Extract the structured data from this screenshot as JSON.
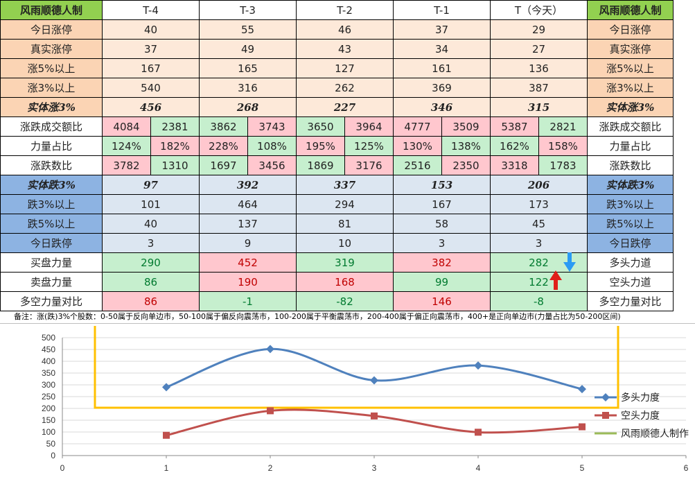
{
  "table": {
    "corner_label": "风雨顺德人制",
    "columns": [
      "T-4",
      "T-3",
      "T-2",
      "T-1",
      "T（今天）"
    ],
    "rows_upper": [
      {
        "label": "今日涨停",
        "values": [
          "40",
          "55",
          "46",
          "37",
          "29"
        ]
      },
      {
        "label": "真实涨停",
        "values": [
          "37",
          "49",
          "43",
          "34",
          "27"
        ]
      },
      {
        "label": "涨5%以上",
        "values": [
          "167",
          "165",
          "127",
          "161",
          "136"
        ]
      },
      {
        "label": "涨3%以上",
        "values": [
          "540",
          "316",
          "262",
          "369",
          "387"
        ]
      }
    ],
    "row_solid_up": {
      "label": "实体涨3%",
      "values": [
        "456",
        "268",
        "227",
        "346",
        "315"
      ]
    },
    "row_pairs": [
      {
        "label": "涨跌成交额比",
        "values": [
          [
            "4084",
            "2381"
          ],
          [
            "3862",
            "3743"
          ],
          [
            "3650",
            "3964"
          ],
          [
            "4777",
            "3509"
          ],
          [
            "5387",
            "2821"
          ]
        ]
      },
      {
        "label": "力量占比",
        "values": [
          [
            "124%",
            "182%"
          ],
          [
            "228%",
            "108%"
          ],
          [
            "195%",
            "125%"
          ],
          [
            "130%",
            "138%"
          ],
          [
            "162%",
            "158%"
          ]
        ]
      },
      {
        "label": "涨跌数比",
        "values": [
          [
            "3782",
            "1310"
          ],
          [
            "1697",
            "3456"
          ],
          [
            "1869",
            "3176"
          ],
          [
            "2516",
            "2350"
          ],
          [
            "3318",
            "1783"
          ]
        ]
      }
    ],
    "row_solid_down": {
      "label": "实体跌3%",
      "values": [
        "97",
        "392",
        "337",
        "153",
        "206"
      ]
    },
    "rows_lower": [
      {
        "label": "跌3%以上",
        "values": [
          "101",
          "464",
          "294",
          "167",
          "173"
        ]
      },
      {
        "label": "跌5%以上",
        "values": [
          "40",
          "137",
          "81",
          "58",
          "45"
        ]
      },
      {
        "label": "今日跌停",
        "values": [
          "3",
          "9",
          "10",
          "3",
          "3"
        ]
      }
    ],
    "rows_power": [
      {
        "label": "买盘力量",
        "right_label": "多头力道",
        "values": [
          "290",
          "452",
          "319",
          "382",
          "282"
        ]
      },
      {
        "label": "卖盘力量",
        "right_label": "空头力道",
        "values": [
          "86",
          "190",
          "168",
          "99",
          "122"
        ]
      },
      {
        "label": "多空力量对比",
        "right_label": "多空力量对比",
        "values": [
          "86",
          "-1",
          "-82",
          "146",
          "-8"
        ]
      }
    ]
  },
  "note": "备注：涨(跌)3%个股数：0-50属于反向单边市，50-100属于偏反向震荡市，100-200属于平衡震荡市，200-400属于偏正向震荡市，400+是正向单边市(力量占比为50-200区间)",
  "colors": {
    "bull": "#4f81bd",
    "bear": "#c0504d",
    "maker": "#9bbb59",
    "highlight_box": "#ffc000"
  },
  "chart_data": {
    "type": "scatter",
    "xlim": [
      0,
      6
    ],
    "ylim": [
      0,
      500
    ],
    "xticks": [
      "0",
      "1",
      "2",
      "3",
      "4",
      "5",
      "6"
    ],
    "yticks": [
      "0",
      "50",
      "100",
      "150",
      "200",
      "250",
      "300",
      "350",
      "400",
      "450",
      "500"
    ],
    "grid": true,
    "legend_position": "right",
    "series": [
      {
        "name": "多头力度",
        "x": [
          1,
          2,
          3,
          4,
          5
        ],
        "y": [
          290,
          452,
          319,
          382,
          282
        ],
        "color": "#4f81bd",
        "marker": "diamond"
      },
      {
        "name": "空头力度",
        "x": [
          1,
          2,
          3,
          4,
          5
        ],
        "y": [
          86,
          190,
          168,
          99,
          122
        ],
        "color": "#c0504d",
        "marker": "square"
      },
      {
        "name": "风雨顺德人制作",
        "x": [],
        "y": [],
        "color": "#9bbb59",
        "marker": "none"
      }
    ]
  }
}
